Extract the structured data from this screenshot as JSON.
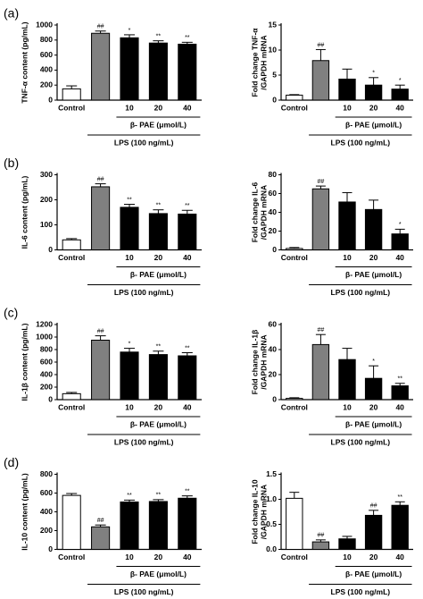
{
  "panel_labels": [
    "(a)",
    "(b)",
    "(c)",
    "(d)"
  ],
  "chart_data": [
    {
      "type": "bar",
      "ylabel": [
        "TNF-α content (pg/mL)"
      ],
      "categories": [
        "Control",
        null,
        "10",
        "20",
        "40"
      ],
      "values": [
        150,
        890,
        830,
        760,
        745
      ],
      "errors": [
        40,
        30,
        40,
        30,
        25
      ],
      "annotations": [
        null,
        "##",
        "*",
        "**",
        "**"
      ],
      "colors": [
        "#ffffff",
        "#808080",
        "#000000",
        "#000000",
        "#000000"
      ],
      "ylim": [
        0,
        1000
      ],
      "yticks": [
        0,
        200,
        400,
        600,
        800,
        1000
      ],
      "group_labels": [
        "β- PAE (μmol/L)",
        "LPS (100 ng/mL)"
      ]
    },
    {
      "type": "bar",
      "ylabel": [
        "Fold change TNF-α",
        "/GAPDH mRNA"
      ],
      "categories": [
        "Control",
        null,
        "10",
        "20",
        "40"
      ],
      "values": [
        1.0,
        7.9,
        4.2,
        3.0,
        2.2
      ],
      "errors": [
        0.1,
        2.2,
        2.0,
        1.5,
        0.8
      ],
      "annotations": [
        null,
        "##",
        null,
        "*",
        "*"
      ],
      "colors": [
        "#ffffff",
        "#808080",
        "#000000",
        "#000000",
        "#000000"
      ],
      "ylim": [
        0,
        15
      ],
      "yticks": [
        0,
        5,
        10,
        15
      ],
      "group_labels": [
        "β- PAE (μmol/L)",
        "LPS (100 ng/mL)"
      ]
    },
    {
      "type": "bar",
      "ylabel": [
        "IL-6 content (pg/mL)"
      ],
      "categories": [
        "Control",
        null,
        "10",
        "20",
        "40"
      ],
      "values": [
        40,
        252,
        170,
        145,
        143
      ],
      "errors": [
        5,
        12,
        12,
        15,
        15
      ],
      "annotations": [
        null,
        "##",
        "**",
        "**",
        "**"
      ],
      "colors": [
        "#ffffff",
        "#808080",
        "#000000",
        "#000000",
        "#000000"
      ],
      "ylim": [
        0,
        300
      ],
      "yticks": [
        0,
        100,
        200,
        300
      ],
      "group_labels": [
        "β- PAE (μmol/L)",
        "LPS (100 ng/mL)"
      ]
    },
    {
      "type": "bar",
      "ylabel": [
        "Fold change IL-6",
        "/GAPDH mRNA"
      ],
      "categories": [
        "Control",
        null,
        "10",
        "20",
        "40"
      ],
      "values": [
        1.5,
        65,
        51,
        43,
        17
      ],
      "errors": [
        1,
        3,
        10,
        10,
        5
      ],
      "annotations": [
        null,
        "##",
        null,
        null,
        "*"
      ],
      "colors": [
        "#ffffff",
        "#808080",
        "#000000",
        "#000000",
        "#000000"
      ],
      "ylim": [
        0,
        80
      ],
      "yticks": [
        0,
        20,
        40,
        60,
        80
      ],
      "group_labels": [
        "β- PAE (μmol/L)",
        "LPS (100 ng/mL)"
      ]
    },
    {
      "type": "bar",
      "ylabel": [
        "IL-1β content (pg/mL)"
      ],
      "categories": [
        "Control",
        null,
        "10",
        "20",
        "40"
      ],
      "values": [
        95,
        950,
        760,
        720,
        700
      ],
      "errors": [
        20,
        70,
        60,
        55,
        50
      ],
      "annotations": [
        null,
        "##",
        "*",
        "**",
        "**"
      ],
      "colors": [
        "#ffffff",
        "#808080",
        "#000000",
        "#000000",
        "#000000"
      ],
      "ylim": [
        0,
        1200
      ],
      "yticks": [
        0,
        200,
        400,
        600,
        800,
        1000,
        1200
      ],
      "group_labels": [
        "β- PAE (μmol/L)",
        "LPS (100 ng/mL)"
      ]
    },
    {
      "type": "bar",
      "ylabel": [
        "Fold change IL-1β",
        "/GAPDH mRNA"
      ],
      "categories": [
        "Control",
        null,
        "10",
        "20",
        "40"
      ],
      "values": [
        1,
        44,
        32,
        17,
        11
      ],
      "errors": [
        0.5,
        8,
        9,
        10,
        2
      ],
      "annotations": [
        null,
        "##",
        null,
        "*",
        "**"
      ],
      "colors": [
        "#ffffff",
        "#808080",
        "#000000",
        "#000000",
        "#000000"
      ],
      "ylim": [
        0,
        60
      ],
      "yticks": [
        0,
        20,
        40,
        60
      ],
      "group_labels": [
        "β- PAE (μmol/L)",
        "LPS (100 ng/mL)"
      ]
    },
    {
      "type": "bar",
      "ylabel": [
        "IL-10 content (pg/mL)"
      ],
      "categories": [
        "Control",
        null,
        "10",
        "20",
        "40"
      ],
      "values": [
        575,
        240,
        505,
        510,
        545
      ],
      "errors": [
        20,
        20,
        20,
        20,
        25
      ],
      "annotations": [
        null,
        "##",
        "**",
        "**",
        "**"
      ],
      "colors": [
        "#ffffff",
        "#808080",
        "#000000",
        "#000000",
        "#000000"
      ],
      "ylim": [
        0,
        800
      ],
      "yticks": [
        0,
        200,
        400,
        600,
        800
      ],
      "group_labels": [
        "β- PAE (μmol/L)",
        "LPS (100 ng/mL)"
      ]
    },
    {
      "type": "bar",
      "ylabel": [
        "Fold change IL-10",
        "/GAPDH mRNA"
      ],
      "categories": [
        "Control",
        null,
        "10",
        "20",
        "40"
      ],
      "values": [
        1.02,
        0.15,
        0.21,
        0.68,
        0.88
      ],
      "errors": [
        0.12,
        0.04,
        0.05,
        0.1,
        0.07
      ],
      "annotations": [
        null,
        "##",
        null,
        "##",
        "**"
      ],
      "colors": [
        "#ffffff",
        "#808080",
        "#000000",
        "#000000",
        "#000000"
      ],
      "ylim": [
        0,
        1.5
      ],
      "yticks": [
        {
          "value": 0,
          "label": "0.0"
        },
        0.5,
        {
          "value": 1,
          "label": "1.0"
        },
        1.5
      ],
      "group_labels": [
        "β- PAE (μmol/L)",
        "LPS (100 ng/mL)"
      ]
    }
  ]
}
